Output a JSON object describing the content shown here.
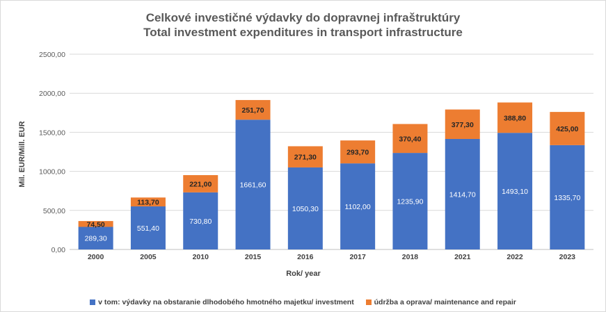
{
  "chart_data": {
    "type": "bar",
    "stacked": true,
    "title": "Celkové investičné výdavky do dopravnej infraštruktúry",
    "subtitle": "Total investment expenditures in transport infrastructure",
    "xlabel": "Rok/ year",
    "ylabel": "Mil. EUR/Mill. EUR",
    "ylim": [
      0,
      2500
    ],
    "yticks": [
      "0,00",
      "500,00",
      "1000,00",
      "1500,00",
      "2000,00",
      "2500,00"
    ],
    "grid": true,
    "legend_position": "bottom",
    "categories": [
      "2000",
      "2005",
      "2010",
      "2015",
      "2016",
      "2017",
      "2018",
      "2021",
      "2022",
      "2023"
    ],
    "series": [
      {
        "name": "v tom: výdavky na obstaranie dlhodobého hmotného majetku/ investment",
        "color": "#4472c4",
        "values": [
          289.3,
          551.4,
          730.8,
          1661.6,
          1050.3,
          1102.0,
          1235.9,
          1414.7,
          1493.1,
          1335.7
        ],
        "labels": [
          "289,30",
          "551,40",
          "730,80",
          "1661,60",
          "1050,30",
          "1102,00",
          "1235,90",
          "1414,70",
          "1493,10",
          "1335,70"
        ]
      },
      {
        "name": "údržba a oprava/ maintenance and repair",
        "color": "#ed7d31",
        "values": [
          74.5,
          113.7,
          221.0,
          251.7,
          271.3,
          293.7,
          370.4,
          377.3,
          388.8,
          425.0
        ],
        "labels": [
          "74,50",
          "113,70",
          "221,00",
          "251,70",
          "271,30",
          "293,70",
          "370,40",
          "377,30",
          "388,80",
          "425,00"
        ]
      }
    ]
  }
}
